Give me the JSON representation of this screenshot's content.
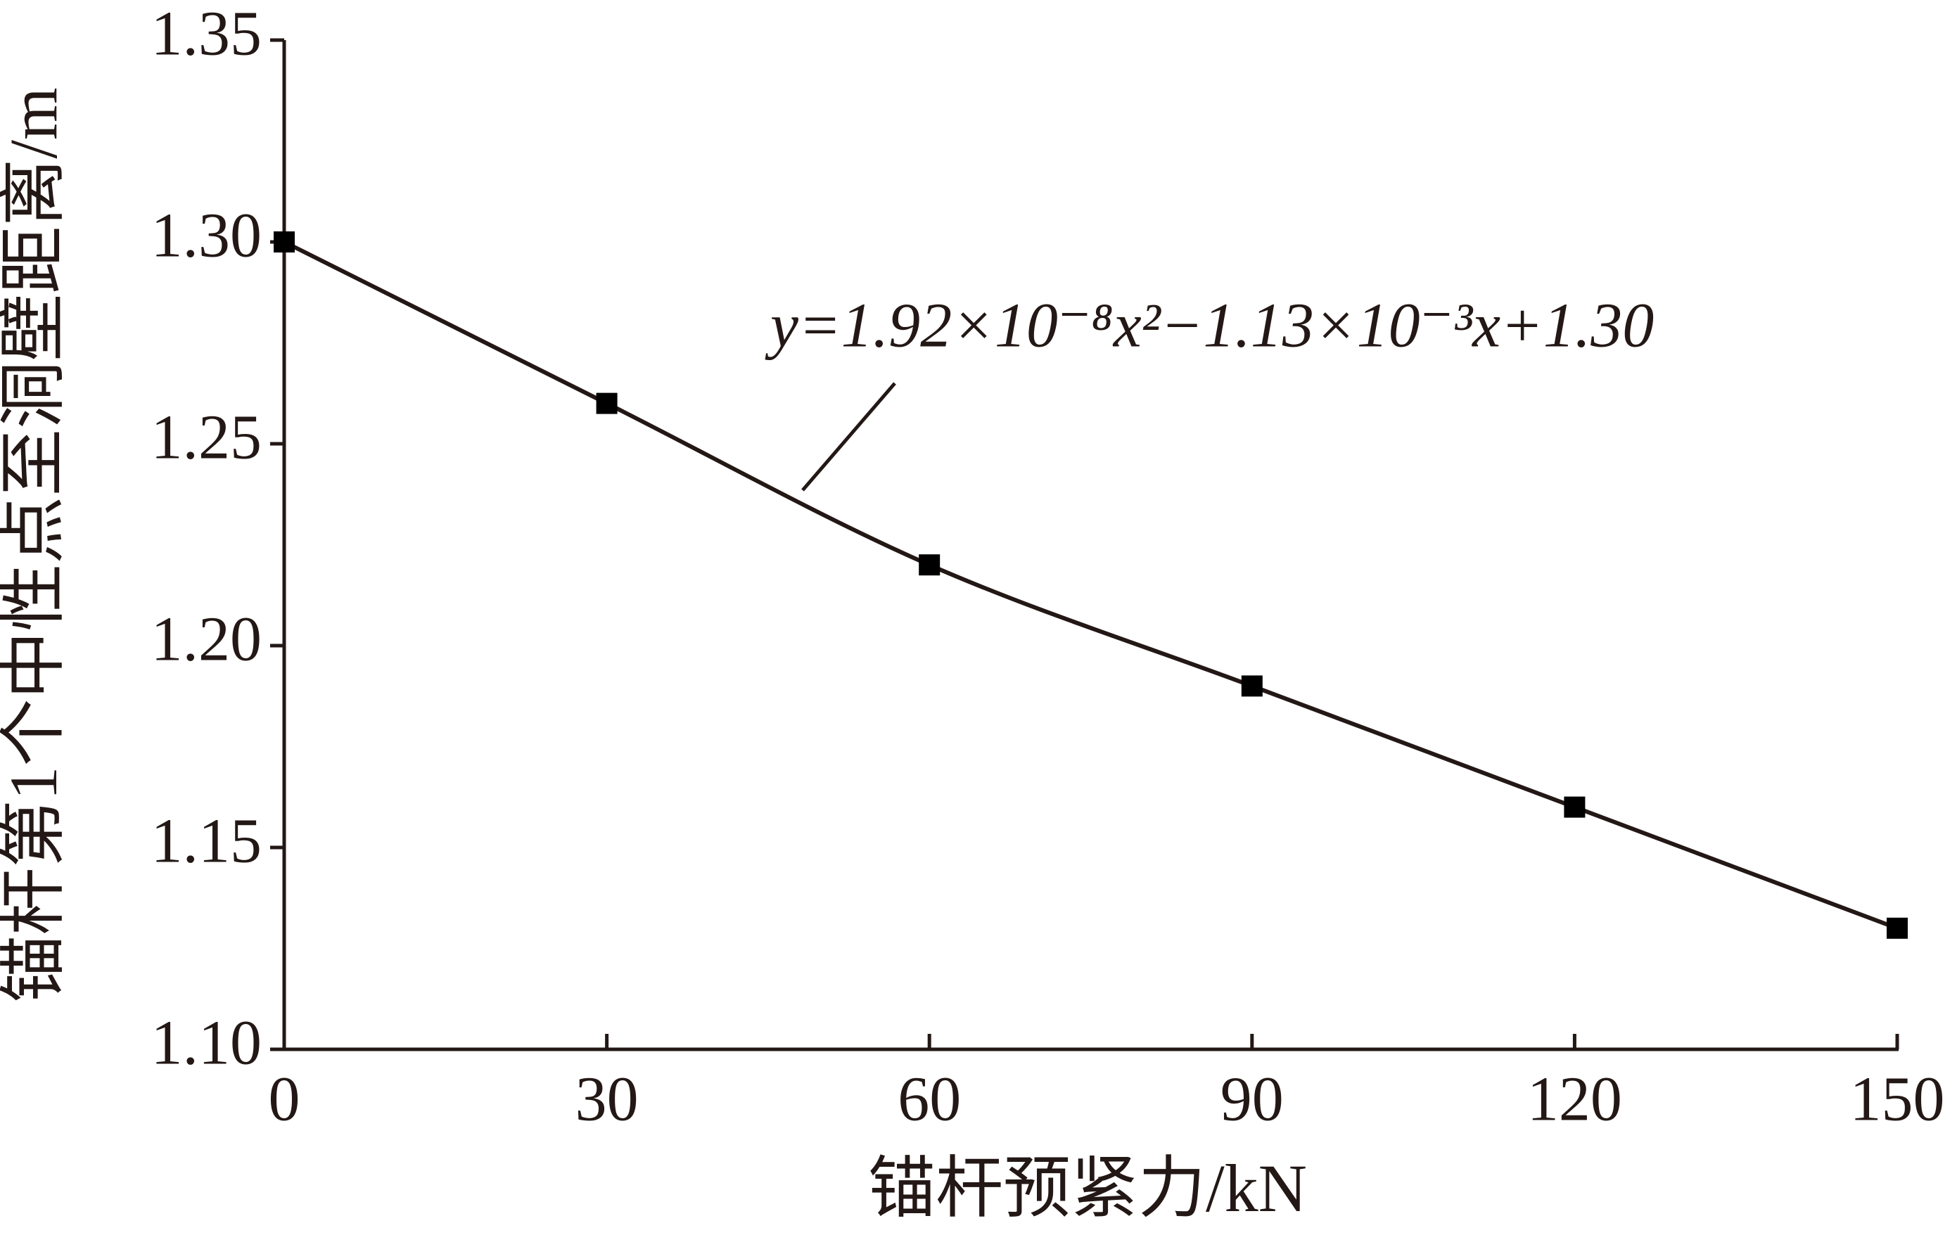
{
  "chart_data": {
    "type": "scatter",
    "x": [
      0,
      30,
      60,
      90,
      120,
      150
    ],
    "values": [
      1.3,
      1.26,
      1.22,
      1.19,
      1.16,
      1.13
    ],
    "color": "#000000",
    "line": true,
    "xlim": [
      0,
      150
    ],
    "xticks": [
      0,
      30,
      60,
      90,
      120,
      150
    ],
    "ylim": [
      1.1,
      1.35
    ],
    "yticks": [
      {
        "value": 1.1,
        "label": "1.10"
      },
      1.15,
      {
        "value": 1.2,
        "label": "1.20"
      },
      1.25,
      {
        "value": 1.3,
        "label": "1.30"
      },
      1.35
    ],
    "xlabel": "锚杆预紧力/kN",
    "ylabel": "锚杆第1个中性点至洞壁距离/m",
    "annotation": "y=1.92×10⁻⁸x²−1.13×10⁻³x+1.30"
  }
}
